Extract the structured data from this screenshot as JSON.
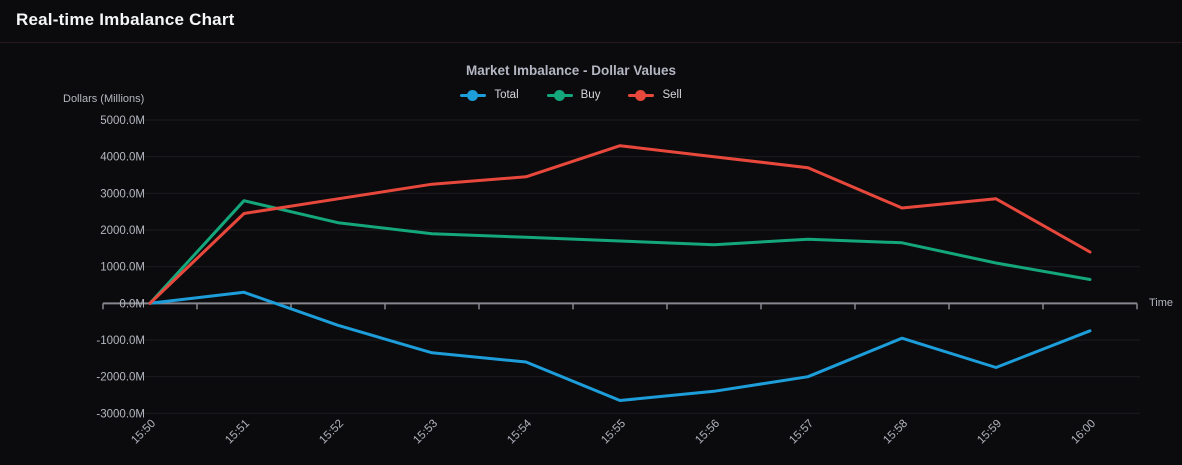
{
  "page": {
    "title": "Real-time Imbalance Chart"
  },
  "chart_data": {
    "type": "line",
    "title": "Market Imbalance - Dollar Values",
    "xlabel": "Time",
    "ylabel": "Dollars (Millions)",
    "x": [
      "15:50",
      "15:51",
      "15:52",
      "15:53",
      "15:54",
      "15:55",
      "15:56",
      "15:57",
      "15:58",
      "15:59",
      "16:00"
    ],
    "series": [
      {
        "name": "Total",
        "color": "#1d9dd9",
        "values": [
          0,
          300,
          -600,
          -1350,
          -1600,
          -2650,
          -2400,
          -2000,
          -950,
          -1750,
          -750
        ]
      },
      {
        "name": "Buy",
        "color": "#15a77c",
        "values": [
          0,
          2800,
          2200,
          1900,
          1800,
          1700,
          1600,
          1750,
          1650,
          1100,
          650
        ]
      },
      {
        "name": "Sell",
        "color": "#e8483c",
        "values": [
          0,
          2450,
          2850,
          3250,
          3450,
          4300,
          4000,
          3700,
          2600,
          2850,
          1400
        ]
      }
    ],
    "ylim": [
      -3000,
      5000
    ],
    "y_ticks": [
      5000,
      4000,
      3000,
      2000,
      1000,
      0,
      -1000,
      -2000,
      -3000
    ],
    "y_tick_format": "{value}.0M",
    "grid": true,
    "legend_position": "top",
    "colors": {
      "background": "#0b0b0d",
      "grid_line": "#1d1d21",
      "zero_line": "#85868e",
      "tick_text": "#b4b6c0",
      "title_text": "#b4b6c2",
      "legend_text": "#d6d7da",
      "header_text": "#f5f6f7"
    }
  }
}
